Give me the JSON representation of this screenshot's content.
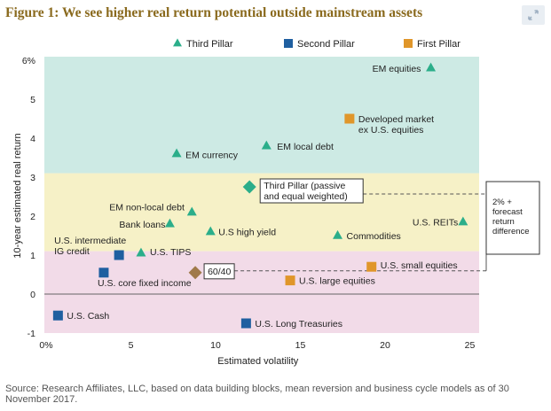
{
  "figure_title": "Figure 1: We see higher real return potential outside mainstream assets",
  "source_note": "Source: Research Affiliates, LLC, based on data building blocks, mean reversion and business cycle models as of 30 November 2017.",
  "colors": {
    "title": "#8a6a1e",
    "third_pillar": "#2bae8a",
    "second_pillar": "#1f5fa0",
    "first_pillar": "#e0962a",
    "mixed_point": "#a07a4a",
    "band_high": "#cdeae4",
    "band_mid": "#f6f1c7",
    "band_low": "#f2dbe8"
  },
  "chart_data": {
    "type": "scatter",
    "xlabel": "Estimated volatility",
    "ylabel": "10-year estimated real return",
    "xlim": [
      0,
      25
    ],
    "ylim": [
      -1,
      6
    ],
    "x_ticks": [
      {
        "value": 0,
        "label": "0%"
      },
      {
        "value": 5,
        "label": "5"
      },
      {
        "value": 10,
        "label": "10"
      },
      {
        "value": 15,
        "label": "15"
      },
      {
        "value": 20,
        "label": "20"
      },
      {
        "value": 25,
        "label": "25"
      }
    ],
    "y_ticks": [
      {
        "value": -1,
        "label": "-1"
      },
      {
        "value": 0,
        "label": "0"
      },
      {
        "value": 1,
        "label": "1"
      },
      {
        "value": 2,
        "label": "2"
      },
      {
        "value": 3,
        "label": "3"
      },
      {
        "value": 4,
        "label": "4"
      },
      {
        "value": 5,
        "label": "5"
      },
      {
        "value": 6,
        "label": "6%"
      }
    ],
    "bands": [
      {
        "from": 3.1,
        "to": 6.2,
        "color": "#cdeae4"
      },
      {
        "from": 1.1,
        "to": 3.1,
        "color": "#f6f1c7"
      },
      {
        "from": -1.0,
        "to": 1.1,
        "color": "#f2dbe8"
      }
    ],
    "legend": [
      {
        "name": "Third Pillar",
        "marker": "triangle",
        "color": "#2bae8a"
      },
      {
        "name": "Second Pillar",
        "marker": "square",
        "color": "#1f5fa0"
      },
      {
        "name": "First Pillar",
        "marker": "square",
        "color": "#e0962a"
      }
    ],
    "series": [
      {
        "name": "Third Pillar",
        "marker": "triangle",
        "color": "#2bae8a",
        "points": [
          {
            "label": "EM equities",
            "x": 22.7,
            "y": 5.8
          },
          {
            "label": "EM local debt",
            "x": 13.0,
            "y": 3.8
          },
          {
            "label": "EM currency",
            "x": 7.7,
            "y": 3.6
          },
          {
            "label": "EM non-local debt",
            "x": 8.6,
            "y": 2.1
          },
          {
            "label": "Bank loans",
            "x": 7.3,
            "y": 1.8
          },
          {
            "label": "U.S high yield",
            "x": 9.7,
            "y": 1.6
          },
          {
            "label": "U.S. TIPS",
            "x": 5.6,
            "y": 1.05
          },
          {
            "label": "Commodities",
            "x": 17.2,
            "y": 1.5
          },
          {
            "label": "U.S. REITs",
            "x": 24.6,
            "y": 1.85
          }
        ]
      },
      {
        "name": "Second Pillar",
        "marker": "square",
        "color": "#1f5fa0",
        "points": [
          {
            "label": "U.S. intermediate IG credit",
            "x": 4.3,
            "y": 1.0
          },
          {
            "label": "U.S. core fixed income",
            "x": 3.4,
            "y": 0.55
          },
          {
            "label": "U.S. Cash",
            "x": 0.7,
            "y": -0.55
          },
          {
            "label": "U.S. Long Treasuries",
            "x": 11.8,
            "y": -0.75
          }
        ]
      },
      {
        "name": "First Pillar",
        "marker": "square",
        "color": "#e0962a",
        "points": [
          {
            "label": "Developed market ex U.S. equities",
            "x": 17.9,
            "y": 4.5
          },
          {
            "label": "U.S. small equities",
            "x": 19.2,
            "y": 0.7
          },
          {
            "label": "U.S. large equities",
            "x": 14.4,
            "y": 0.35
          }
        ]
      }
    ],
    "highlights": [
      {
        "label": "Third Pillar (passive and equal weighted)",
        "x": 12.0,
        "y": 2.75,
        "marker": "diamond",
        "color": "#2bae8a"
      },
      {
        "label": "60/40",
        "x": 8.8,
        "y": 0.55,
        "marker": "diamond",
        "color": "#a07a4a"
      }
    ],
    "annotation": "2% + forecast return difference"
  }
}
